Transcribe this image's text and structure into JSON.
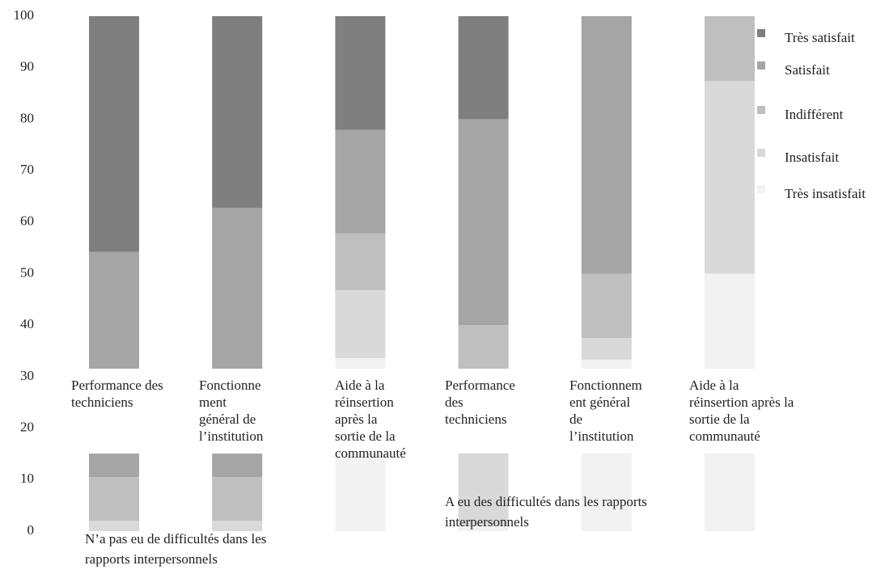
{
  "chart_data": {
    "type": "bar",
    "stacked": true,
    "categories": [
      [
        "Performance des",
        "techniciens"
      ],
      [
        "Fonctionne",
        "ment",
        "général de",
        "l’institution"
      ],
      [
        "Aide à la",
        "réinsertion",
        "après la",
        "sortie de la",
        "communauté"
      ],
      [
        "Performance",
        "des",
        "techniciens"
      ],
      [
        "Fonctionnem",
        "ent général",
        "de",
        "l’institution"
      ],
      [
        "Aide à la",
        "réinsertion après la",
        "sortie de la",
        "communauté"
      ]
    ],
    "groups": [
      [
        "N’a  pas eu de difficultés dans les",
        "rapports interpersonnels"
      ],
      [
        "A eu des difficultés dans les rapports",
        "interpersonnels"
      ]
    ],
    "series": [
      {
        "name": "Très insatisfait",
        "color": "#f2f2f2",
        "values": [
          0,
          0,
          33.6,
          1,
          33.3,
          50
        ]
      },
      {
        "name": "Insatisfait",
        "color": "#d9d9d9",
        "values": [
          2,
          2,
          13.2,
          14,
          4.2,
          37.4
        ]
      },
      {
        "name": "Indifférent",
        "color": "#bfbfbf",
        "values": [
          8.5,
          8.5,
          11,
          25,
          12.5,
          12.6
        ]
      },
      {
        "name": "Satisfait",
        "color": "#a5a5a5",
        "values": [
          43.7,
          52.3,
          20.1,
          40,
          50,
          0
        ]
      },
      {
        "name": "Très satisfait",
        "color": "#7f7f7f",
        "values": [
          45.8,
          37.2,
          22.1,
          20,
          0,
          0
        ]
      }
    ],
    "ylim": [
      0,
      100
    ],
    "yticks": [
      0,
      10,
      20,
      30,
      40,
      50,
      60,
      70,
      80,
      90,
      100
    ],
    "legend": "right"
  }
}
